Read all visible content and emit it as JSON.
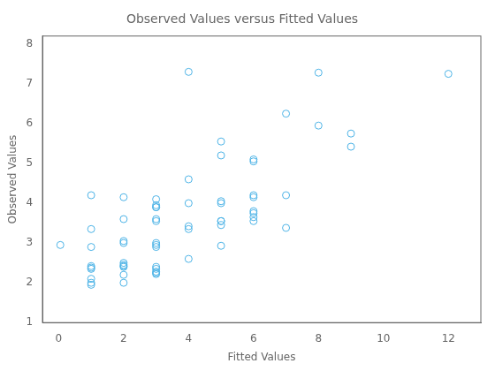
{
  "chart_data": {
    "type": "scatter",
    "title": "Observed Values versus Fitted Values",
    "xlabel": "Fitted Values",
    "ylabel": "Observed Values",
    "xlim": [
      -0.5,
      13
    ],
    "ylim": [
      1,
      8.2
    ],
    "xticks": [
      0,
      2,
      4,
      6,
      8,
      10,
      12
    ],
    "yticks": [
      1,
      2,
      3,
      4,
      5,
      6,
      7,
      8
    ],
    "color": "#4db3e6",
    "marker": "circle",
    "grid": false,
    "x": [
      0.05,
      1.0,
      1.0,
      1.0,
      1.0,
      1.0,
      1.0,
      1.0,
      1.0,
      1.0,
      2.0,
      2.0,
      2.0,
      2.0,
      2.0,
      2.0,
      2.0,
      2.0,
      2.0,
      2.0,
      3.0,
      3.0,
      3.0,
      3.0,
      3.0,
      3.0,
      3.0,
      3.0,
      3.0,
      3.0,
      3.0,
      3.0,
      3.0,
      3.0,
      4.0,
      4.0,
      4.0,
      4.0,
      4.0,
      4.0,
      5.0,
      5.0,
      5.0,
      5.0,
      5.0,
      5.0,
      5.0,
      5.0,
      6.0,
      6.0,
      6.0,
      6.0,
      6.0,
      6.0,
      6.0,
      6.0,
      7.0,
      7.0,
      7.0,
      8.0,
      8.0,
      9.0,
      9.0,
      12.0
    ],
    "values": [
      2.95,
      1.95,
      2.0,
      2.1,
      2.35,
      2.38,
      2.42,
      2.9,
      3.35,
      4.2,
      2.0,
      2.2,
      2.4,
      2.42,
      2.45,
      2.5,
      3.0,
      3.05,
      3.6,
      4.15,
      2.22,
      2.25,
      2.28,
      2.35,
      2.4,
      2.9,
      2.95,
      3.0,
      3.55,
      3.6,
      3.9,
      3.9,
      3.95,
      4.1,
      2.6,
      3.35,
      3.42,
      4.0,
      4.6,
      7.3,
      2.93,
      3.45,
      3.55,
      3.55,
      4.0,
      4.05,
      5.2,
      5.55,
      3.55,
      3.65,
      3.75,
      3.8,
      4.15,
      4.2,
      5.05,
      5.1,
      3.38,
      4.2,
      6.25,
      5.95,
      7.28,
      5.42,
      5.75,
      7.25
    ]
  }
}
